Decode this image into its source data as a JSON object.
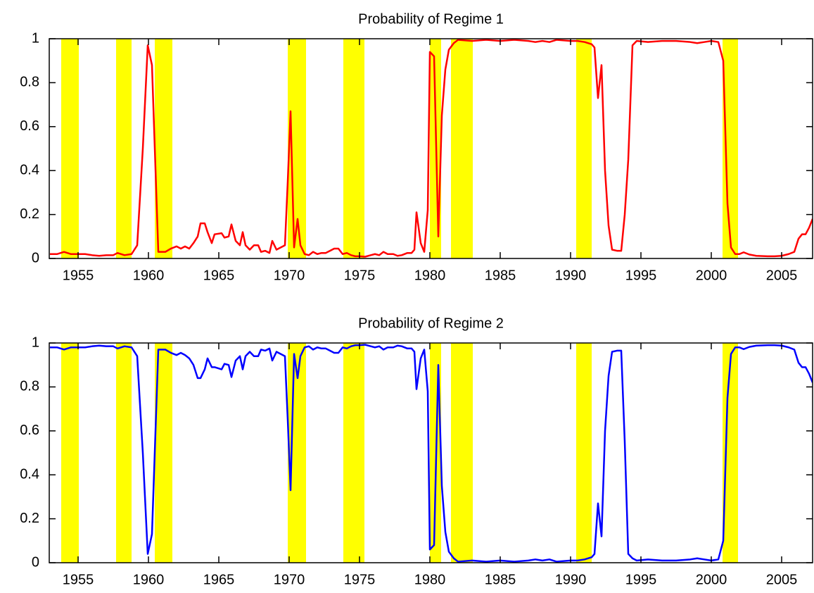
{
  "chart_data": [
    {
      "type": "line",
      "title": "Probability of Regime 1",
      "x": [
        1953.0,
        1953.5,
        1954.0,
        1954.5,
        1955.0,
        1955.5,
        1956.0,
        1956.5,
        1957.0,
        1957.5,
        1957.8,
        1958.3,
        1958.8,
        1959.2,
        1959.6,
        1959.95,
        1960.25,
        1960.7,
        1961.2,
        1961.6,
        1962.0,
        1962.3,
        1962.6,
        1962.9,
        1963.2,
        1963.5,
        1963.7,
        1964.0,
        1964.2,
        1964.5,
        1964.7,
        1965.2,
        1965.4,
        1965.7,
        1965.9,
        1966.2,
        1966.5,
        1966.7,
        1966.9,
        1967.2,
        1967.5,
        1967.8,
        1968.0,
        1968.3,
        1968.6,
        1968.8,
        1969.1,
        1969.4,
        1969.7,
        1969.9,
        1970.1,
        1970.35,
        1970.6,
        1970.8,
        1971.1,
        1971.4,
        1971.7,
        1972.0,
        1972.3,
        1972.6,
        1972.9,
        1973.2,
        1973.5,
        1973.8,
        1974.1,
        1974.4,
        1974.7,
        1975.0,
        1975.4,
        1975.8,
        1976.1,
        1976.4,
        1976.7,
        1977.0,
        1977.4,
        1977.7,
        1978.0,
        1978.4,
        1978.7,
        1978.9,
        1979.05,
        1979.35,
        1979.6,
        1979.85,
        1980.0,
        1980.3,
        1980.6,
        1980.85,
        1981.1,
        1981.35,
        1981.7,
        1982.0,
        1983.0,
        1984.0,
        1985.0,
        1986.0,
        1987.0,
        1987.5,
        1988.0,
        1988.5,
        1989.0,
        1990.0,
        1990.5,
        1991.0,
        1991.5,
        1991.7,
        1991.95,
        1992.2,
        1992.45,
        1992.7,
        1992.95,
        1993.3,
        1993.6,
        1993.85,
        1994.1,
        1994.4,
        1994.7,
        1995.5,
        1996.5,
        1997.5,
        1998.5,
        1999.0,
        1999.5,
        2000.0,
        2000.5,
        2000.85,
        2001.15,
        2001.4,
        2001.7,
        2002.0,
        2002.3,
        2002.7,
        2003.2,
        2004.0,
        2004.5,
        2005.0,
        2005.5,
        2005.9,
        2006.2,
        2006.45,
        2006.7,
        2006.95,
        2007.2
      ],
      "series": [
        {
          "color": "#ff0000",
          "values": [
            0.02,
            0.02,
            0.03,
            0.02,
            0.02,
            0.02,
            0.015,
            0.012,
            0.015,
            0.015,
            0.025,
            0.015,
            0.02,
            0.06,
            0.5,
            0.97,
            0.88,
            0.03,
            0.03,
            0.045,
            0.055,
            0.045,
            0.055,
            0.045,
            0.07,
            0.1,
            0.16,
            0.16,
            0.12,
            0.07,
            0.11,
            0.115,
            0.095,
            0.1,
            0.155,
            0.08,
            0.06,
            0.12,
            0.06,
            0.04,
            0.06,
            0.06,
            0.03,
            0.035,
            0.025,
            0.08,
            0.04,
            0.05,
            0.06,
            0.35,
            0.67,
            0.05,
            0.18,
            0.06,
            0.02,
            0.015,
            0.03,
            0.02,
            0.025,
            0.025,
            0.035,
            0.045,
            0.045,
            0.02,
            0.025,
            0.015,
            0.01,
            0.01,
            0.008,
            0.015,
            0.02,
            0.015,
            0.03,
            0.02,
            0.02,
            0.012,
            0.015,
            0.025,
            0.025,
            0.04,
            0.21,
            0.07,
            0.03,
            0.22,
            0.94,
            0.92,
            0.1,
            0.65,
            0.86,
            0.95,
            0.98,
            0.995,
            0.99,
            0.995,
            0.99,
            0.995,
            0.99,
            0.985,
            0.99,
            0.985,
            0.995,
            0.99,
            0.99,
            0.985,
            0.975,
            0.96,
            0.73,
            0.88,
            0.4,
            0.15,
            0.04,
            0.035,
            0.035,
            0.2,
            0.45,
            0.97,
            0.99,
            0.985,
            0.99,
            0.99,
            0.985,
            0.98,
            0.985,
            0.99,
            0.985,
            0.9,
            0.25,
            0.05,
            0.02,
            0.02,
            0.028,
            0.018,
            0.012,
            0.01,
            0.01,
            0.012,
            0.02,
            0.03,
            0.09,
            0.11,
            0.11,
            0.14,
            0.18
          ]
        }
      ],
      "bands": [
        [
          1953.8,
          1955.05
        ],
        [
          1957.7,
          1958.8
        ],
        [
          1960.45,
          1961.7
        ],
        [
          1969.9,
          1971.2
        ],
        [
          1973.85,
          1975.35
        ],
        [
          1980.0,
          1980.8
        ],
        [
          1981.5,
          1983.05
        ],
        [
          1990.4,
          1991.5
        ],
        [
          2000.8,
          2001.9
        ]
      ],
      "band_color": "#ffff00",
      "xlim": [
        1952.95,
        2007.2
      ],
      "xticks": [
        1955,
        1960,
        1965,
        1970,
        1975,
        1980,
        1985,
        1990,
        1995,
        2000,
        2005
      ],
      "ylim": [
        0,
        1
      ],
      "yticks": [
        0,
        0.2,
        0.4,
        0.6,
        0.8,
        1
      ]
    },
    {
      "type": "line",
      "title": "Probability of Regime 2",
      "x": [
        1953.0,
        1953.5,
        1954.0,
        1954.5,
        1955.0,
        1955.5,
        1956.0,
        1956.5,
        1957.0,
        1957.5,
        1957.8,
        1958.3,
        1958.8,
        1959.2,
        1959.6,
        1959.95,
        1960.25,
        1960.7,
        1961.2,
        1961.6,
        1962.0,
        1962.3,
        1962.6,
        1962.9,
        1963.2,
        1963.5,
        1963.7,
        1964.0,
        1964.2,
        1964.5,
        1964.7,
        1965.2,
        1965.4,
        1965.7,
        1965.9,
        1966.2,
        1966.5,
        1966.7,
        1966.9,
        1967.2,
        1967.5,
        1967.8,
        1968.0,
        1968.3,
        1968.6,
        1968.8,
        1969.1,
        1969.4,
        1969.7,
        1969.9,
        1970.1,
        1970.35,
        1970.6,
        1970.8,
        1971.1,
        1971.4,
        1971.7,
        1972.0,
        1972.3,
        1972.6,
        1972.9,
        1973.2,
        1973.5,
        1973.8,
        1974.1,
        1974.4,
        1974.7,
        1975.0,
        1975.4,
        1975.8,
        1976.1,
        1976.4,
        1976.7,
        1977.0,
        1977.4,
        1977.7,
        1978.0,
        1978.4,
        1978.7,
        1978.9,
        1979.05,
        1979.35,
        1979.6,
        1979.85,
        1980.0,
        1980.3,
        1980.6,
        1980.85,
        1981.1,
        1981.35,
        1981.7,
        1982.0,
        1983.0,
        1984.0,
        1985.0,
        1986.0,
        1987.0,
        1987.5,
        1988.0,
        1988.5,
        1989.0,
        1990.0,
        1990.5,
        1991.0,
        1991.5,
        1991.7,
        1991.95,
        1992.2,
        1992.45,
        1992.7,
        1992.95,
        1993.3,
        1993.6,
        1993.85,
        1994.1,
        1994.4,
        1994.7,
        1995.5,
        1996.5,
        1997.5,
        1998.5,
        1999.0,
        1999.5,
        2000.0,
        2000.5,
        2000.85,
        2001.15,
        2001.4,
        2001.7,
        2002.0,
        2002.3,
        2002.7,
        2003.2,
        2004.0,
        2004.5,
        2005.0,
        2005.5,
        2005.9,
        2006.2,
        2006.45,
        2006.7,
        2006.95,
        2007.2
      ],
      "series": [
        {
          "color": "#0000ff",
          "values": [
            0.98,
            0.98,
            0.97,
            0.98,
            0.98,
            0.98,
            0.985,
            0.988,
            0.985,
            0.985,
            0.975,
            0.985,
            0.98,
            0.94,
            0.5,
            0.04,
            0.13,
            0.97,
            0.97,
            0.955,
            0.945,
            0.955,
            0.945,
            0.93,
            0.9,
            0.84,
            0.84,
            0.88,
            0.93,
            0.89,
            0.89,
            0.88,
            0.905,
            0.9,
            0.845,
            0.92,
            0.94,
            0.88,
            0.94,
            0.96,
            0.94,
            0.94,
            0.97,
            0.965,
            0.975,
            0.92,
            0.96,
            0.95,
            0.94,
            0.65,
            0.33,
            0.95,
            0.84,
            0.94,
            0.98,
            0.985,
            0.97,
            0.98,
            0.975,
            0.975,
            0.965,
            0.955,
            0.955,
            0.98,
            0.975,
            0.985,
            0.99,
            0.99,
            0.992,
            0.985,
            0.98,
            0.985,
            0.97,
            0.98,
            0.98,
            0.988,
            0.985,
            0.975,
            0.975,
            0.96,
            0.79,
            0.93,
            0.97,
            0.78,
            0.06,
            0.08,
            0.9,
            0.35,
            0.14,
            0.05,
            0.02,
            0.005,
            0.01,
            0.005,
            0.01,
            0.005,
            0.01,
            0.015,
            0.01,
            0.015,
            0.005,
            0.01,
            0.01,
            0.015,
            0.025,
            0.04,
            0.27,
            0.12,
            0.6,
            0.85,
            0.96,
            0.965,
            0.965,
            0.55,
            0.04,
            0.02,
            0.01,
            0.015,
            0.01,
            0.01,
            0.015,
            0.02,
            0.015,
            0.01,
            0.015,
            0.1,
            0.75,
            0.95,
            0.98,
            0.98,
            0.972,
            0.982,
            0.988,
            0.99,
            0.99,
            0.988,
            0.98,
            0.97,
            0.91,
            0.89,
            0.89,
            0.86,
            0.82
          ]
        }
      ],
      "bands": [
        [
          1953.8,
          1955.05
        ],
        [
          1957.7,
          1958.8
        ],
        [
          1960.45,
          1961.7
        ],
        [
          1969.9,
          1971.2
        ],
        [
          1973.85,
          1975.35
        ],
        [
          1980.0,
          1980.8
        ],
        [
          1981.5,
          1983.05
        ],
        [
          1990.4,
          1991.5
        ],
        [
          2000.8,
          2001.9
        ]
      ],
      "band_color": "#ffff00",
      "xlim": [
        1952.95,
        2007.2
      ],
      "xticks": [
        1955,
        1960,
        1965,
        1970,
        1975,
        1980,
        1985,
        1990,
        1995,
        2000,
        2005
      ],
      "ylim": [
        0,
        1
      ],
      "yticks": [
        0,
        0.2,
        0.4,
        0.6,
        0.8,
        1
      ]
    }
  ]
}
